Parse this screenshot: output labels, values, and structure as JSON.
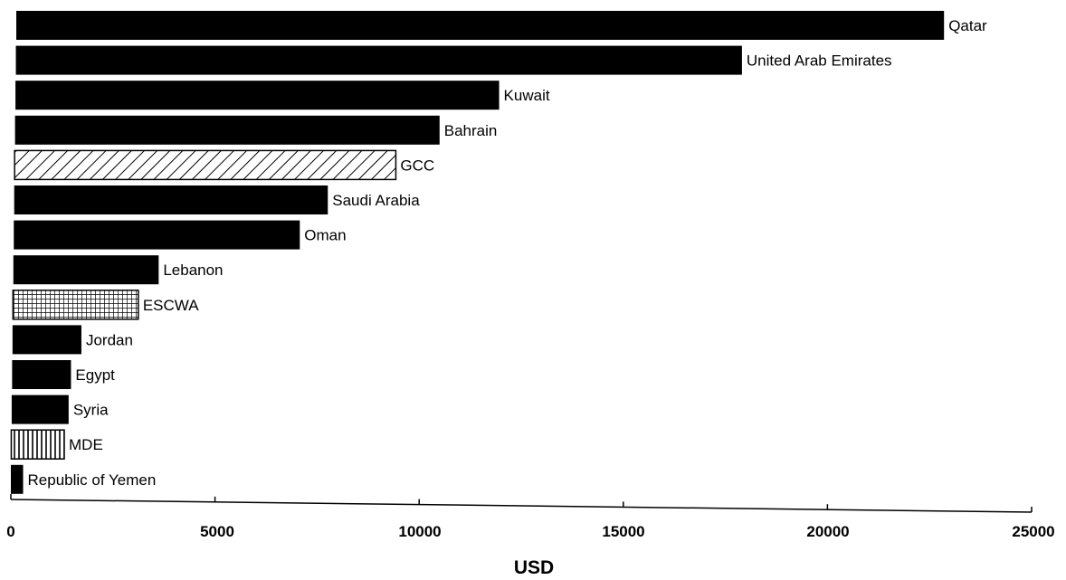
{
  "chart_data": {
    "type": "bar",
    "orientation": "horizontal",
    "title": "",
    "xlabel": "USD",
    "ylabel": "",
    "xlim": [
      0,
      25000
    ],
    "xticks": [
      0,
      5000,
      10000,
      15000,
      20000,
      25000
    ],
    "grid": false,
    "legend": "none",
    "categories": [
      "Qatar",
      "United Arab Emirates",
      "Kuwait",
      "Bahrain",
      "GCC",
      "Saudi Arabia",
      "Oman",
      "Lebanon",
      "ESCWA",
      "Jordan",
      "Egypt",
      "Syria",
      "MDE",
      "Republic of Yemen"
    ],
    "values": [
      23300,
      18200,
      12100,
      10600,
      9500,
      7800,
      7100,
      3600,
      3100,
      1700,
      1450,
      1400,
      1300,
      300
    ],
    "fills": [
      "solid",
      "solid",
      "solid",
      "solid",
      "diagonal-hatch",
      "solid",
      "solid",
      "solid",
      "crosshatch",
      "solid",
      "solid",
      "solid",
      "vertical-hatch",
      "solid"
    ],
    "colors": {
      "bar": "#000000",
      "background": "#ffffff"
    }
  }
}
